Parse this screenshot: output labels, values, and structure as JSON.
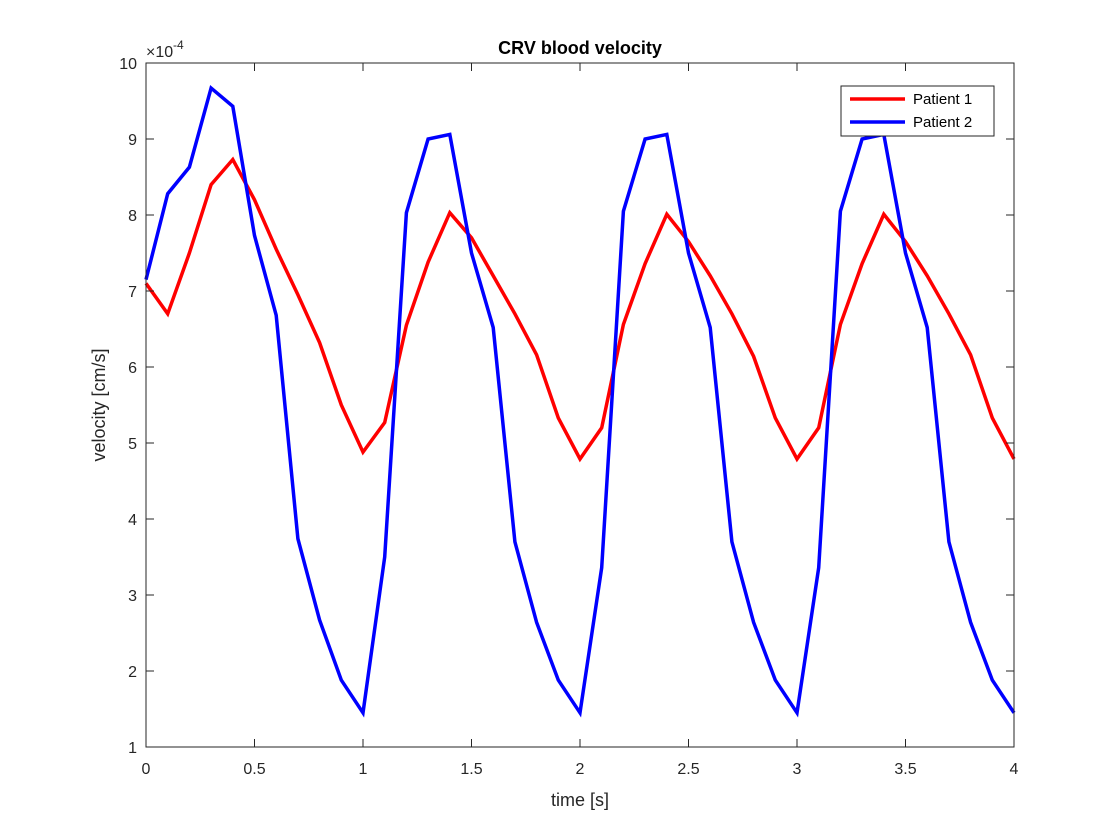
{
  "chart_data": {
    "type": "line",
    "title": "CRV blood velocity",
    "xlabel": "time [s]",
    "ylabel": "velocity [cm/s]",
    "y_multiplier": {
      "base": "×10",
      "exponent": "-4"
    },
    "xlim": [
      0,
      4
    ],
    "ylim": [
      1,
      10
    ],
    "xticks": [
      0,
      0.5,
      1,
      1.5,
      2,
      2.5,
      3,
      3.5,
      4
    ],
    "xtick_labels": [
      "0",
      "0.5",
      "1",
      "1.5",
      "2",
      "2.5",
      "3",
      "3.5",
      "4"
    ],
    "yticks": [
      1,
      2,
      3,
      4,
      5,
      6,
      7,
      8,
      9,
      10
    ],
    "ytick_labels": [
      "1",
      "2",
      "3",
      "4",
      "5",
      "6",
      "7",
      "8",
      "9",
      "10"
    ],
    "grid": false,
    "legend_position": "top-right",
    "x": [
      0,
      0.1,
      0.2,
      0.3,
      0.4,
      0.5,
      0.6,
      0.7,
      0.8,
      0.9,
      1.0,
      1.1,
      1.2,
      1.3,
      1.4,
      1.5,
      1.6,
      1.7,
      1.8,
      1.9,
      2.0,
      2.1,
      2.2,
      2.3,
      2.4,
      2.5,
      2.6,
      2.7,
      2.8,
      2.9,
      3.0,
      3.1,
      3.2,
      3.3,
      3.4,
      3.5,
      3.6,
      3.7,
      3.8,
      3.9,
      4.0
    ],
    "series": [
      {
        "name": "Patient 1",
        "color": "#ff0000",
        "values": [
          7.1,
          6.7,
          7.5,
          8.4,
          8.73,
          8.2,
          7.55,
          6.95,
          6.32,
          5.5,
          4.88,
          5.27,
          6.55,
          7.38,
          8.03,
          7.7,
          7.2,
          6.7,
          6.16,
          5.33,
          4.79,
          5.2,
          6.56,
          7.36,
          8.01,
          7.65,
          7.2,
          6.7,
          6.14,
          5.33,
          4.79,
          5.2,
          6.56,
          7.36,
          8.01,
          7.65,
          7.2,
          6.7,
          6.16,
          5.33,
          4.79
        ]
      },
      {
        "name": "Patient 2",
        "color": "#0000ff",
        "values": [
          7.15,
          8.28,
          8.63,
          9.67,
          9.43,
          7.73,
          6.68,
          3.74,
          2.67,
          1.88,
          1.45,
          3.5,
          8.03,
          9.0,
          9.06,
          7.5,
          6.52,
          3.7,
          2.64,
          1.88,
          1.45,
          3.36,
          8.05,
          9.0,
          9.06,
          7.5,
          6.52,
          3.7,
          2.64,
          1.88,
          1.45,
          3.36,
          8.05,
          9.0,
          9.06,
          7.5,
          6.52,
          3.7,
          2.64,
          1.88,
          1.45
        ]
      }
    ]
  }
}
